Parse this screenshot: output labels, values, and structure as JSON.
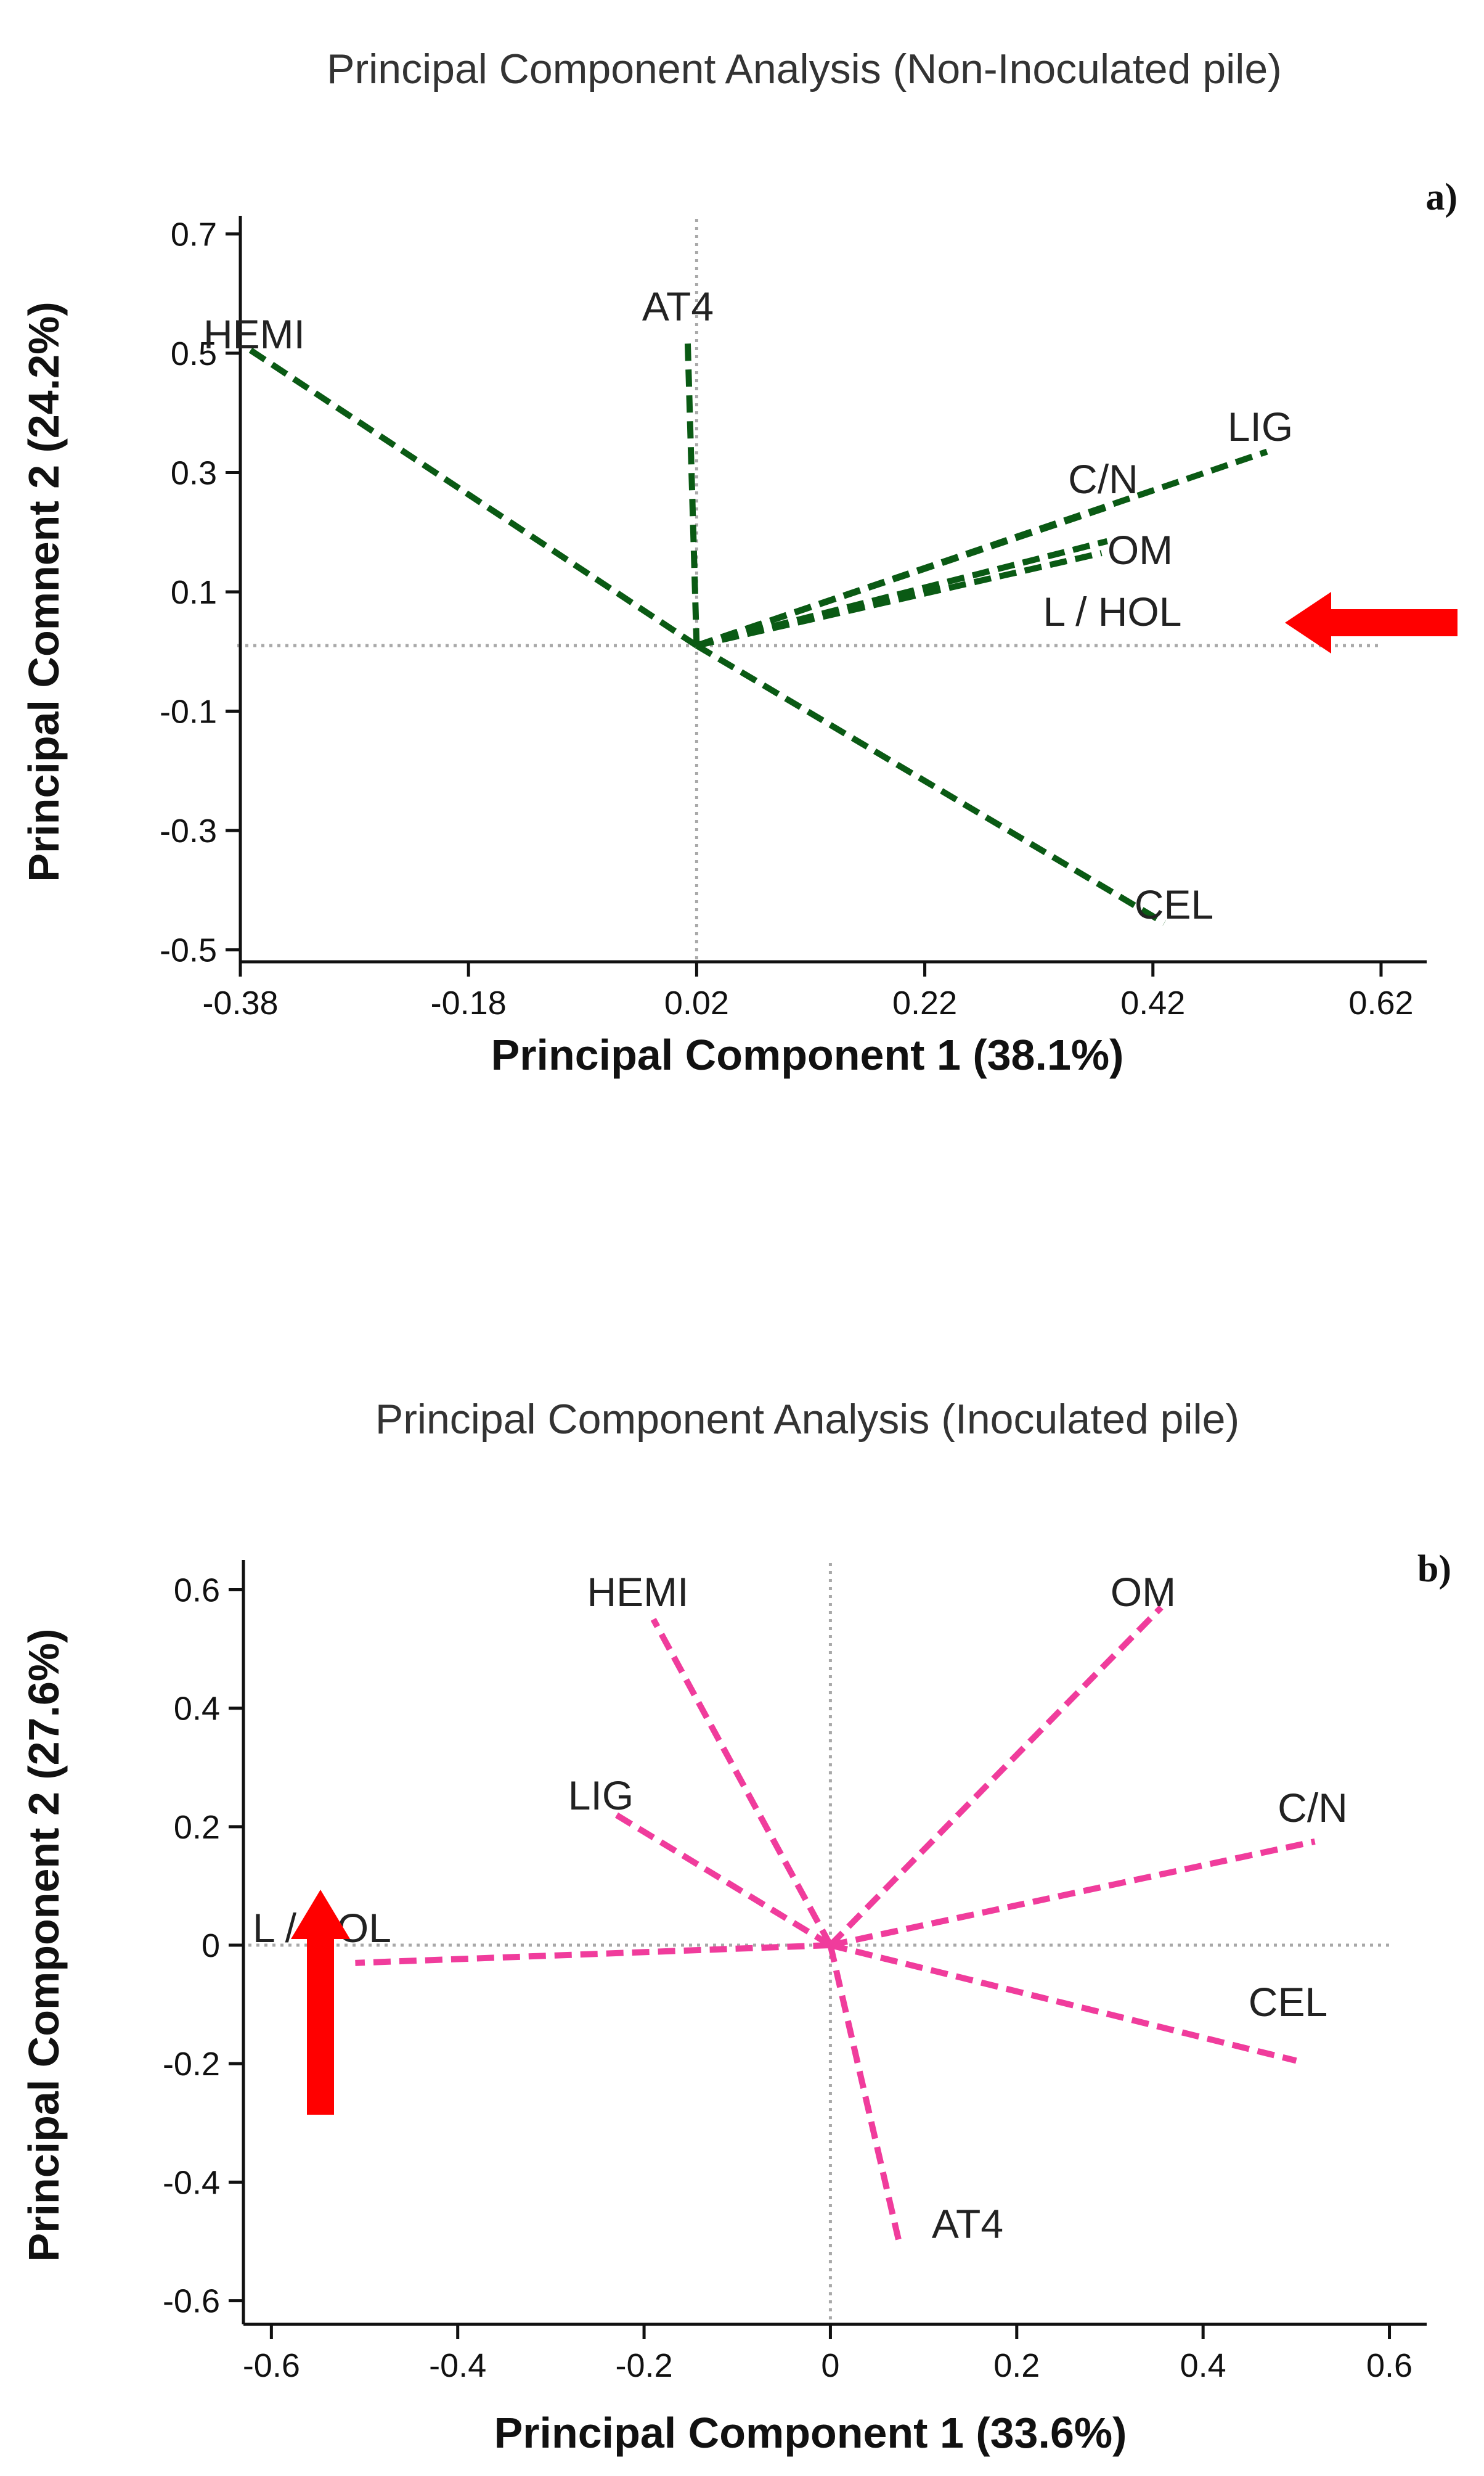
{
  "colors": {
    "panel_a_vectors": "#0a5a14",
    "panel_b_vectors": "#f03c9c",
    "arrow": "#ff0000",
    "reference_lines": "#a9a9a9",
    "axes": "#111111"
  },
  "chart_data": [
    {
      "type": "biplot",
      "panel_label": "a)",
      "title": "Principal Component Analysis (Non-Inoculated pile)",
      "xlabel": "Principal Component 1 (38.1%)",
      "ylabel": "Principal Comnent 2 (24.2%)",
      "xlim": [
        -0.38,
        0.66
      ],
      "ylim": [
        -0.52,
        0.72
      ],
      "x_ticks": [
        -0.38,
        -0.18,
        0.02,
        0.22,
        0.42,
        0.62
      ],
      "x_tick_labels": [
        "-0.38",
        "-0.18",
        "0.02",
        "0.22",
        "0.42",
        "0.62"
      ],
      "y_ticks": [
        0.7,
        0.5,
        0.3,
        0.1,
        -0.1,
        -0.3,
        -0.5
      ],
      "y_tick_labels": [
        "0.7",
        "0.5",
        "0.3",
        "0.1",
        "-0.1",
        "-0.3",
        "-0.5"
      ],
      "reference_lines": {
        "x": 0.02,
        "y": 0.01,
        "x_max": 0.62
      },
      "origin": [
        0.02,
        0.01
      ],
      "vectors": [
        {
          "name": "HEMI",
          "x": -0.375,
          "y": 0.51
        },
        {
          "name": "AT4",
          "x": 0.012,
          "y": 0.53
        },
        {
          "name": "LIG",
          "x": 0.52,
          "y": 0.335
        },
        {
          "name": "C/N",
          "x": 0.385,
          "y": 0.245
        },
        {
          "name": "OM",
          "x": 0.38,
          "y": 0.185
        },
        {
          "name": "L / HOL",
          "x": 0.375,
          "y": 0.165
        },
        {
          "name": "CEL",
          "x": 0.43,
          "y": -0.455
        }
      ],
      "highlighted_variable": "L / HOL"
    },
    {
      "type": "biplot",
      "panel_label": "b)",
      "title": "Principal Component Analysis (Inoculated pile)",
      "xlabel": "Principal Component 1 (33.6%)",
      "ylabel": "Principal Component 2 (27.6%)",
      "xlim": [
        -0.63,
        0.64
      ],
      "ylim": [
        -0.64,
        0.64
      ],
      "x_ticks": [
        -0.6,
        -0.4,
        -0.2,
        0,
        0.2,
        0.4,
        0.6
      ],
      "x_tick_labels": [
        "-0.6",
        "-0.4",
        "-0.2",
        "0",
        "0.2",
        "0.4",
        "0.6"
      ],
      "y_ticks": [
        0.6,
        0.4,
        0.2,
        0,
        -0.2,
        -0.4,
        -0.6
      ],
      "y_tick_labels": [
        "0.6",
        "0.4",
        "0.2",
        "0",
        "-0.2",
        "-0.4",
        "-0.6"
      ],
      "reference_lines": {
        "x": 0,
        "y": 0,
        "x_max": 0.6
      },
      "origin": [
        0.0,
        0.0
      ],
      "vectors": [
        {
          "name": "HEMI",
          "x": -0.19,
          "y": 0.55
        },
        {
          "name": "OM",
          "x": 0.355,
          "y": 0.57
        },
        {
          "name": "LIG",
          "x": -0.23,
          "y": 0.22
        },
        {
          "name": "C/N",
          "x": 0.52,
          "y": 0.175
        },
        {
          "name": "L / HOL",
          "x": -0.51,
          "y": -0.03
        },
        {
          "name": "CEL",
          "x": 0.5,
          "y": -0.195
        },
        {
          "name": "AT4",
          "x": 0.075,
          "y": -0.51
        }
      ],
      "highlighted_variable": "L / HOL"
    }
  ]
}
